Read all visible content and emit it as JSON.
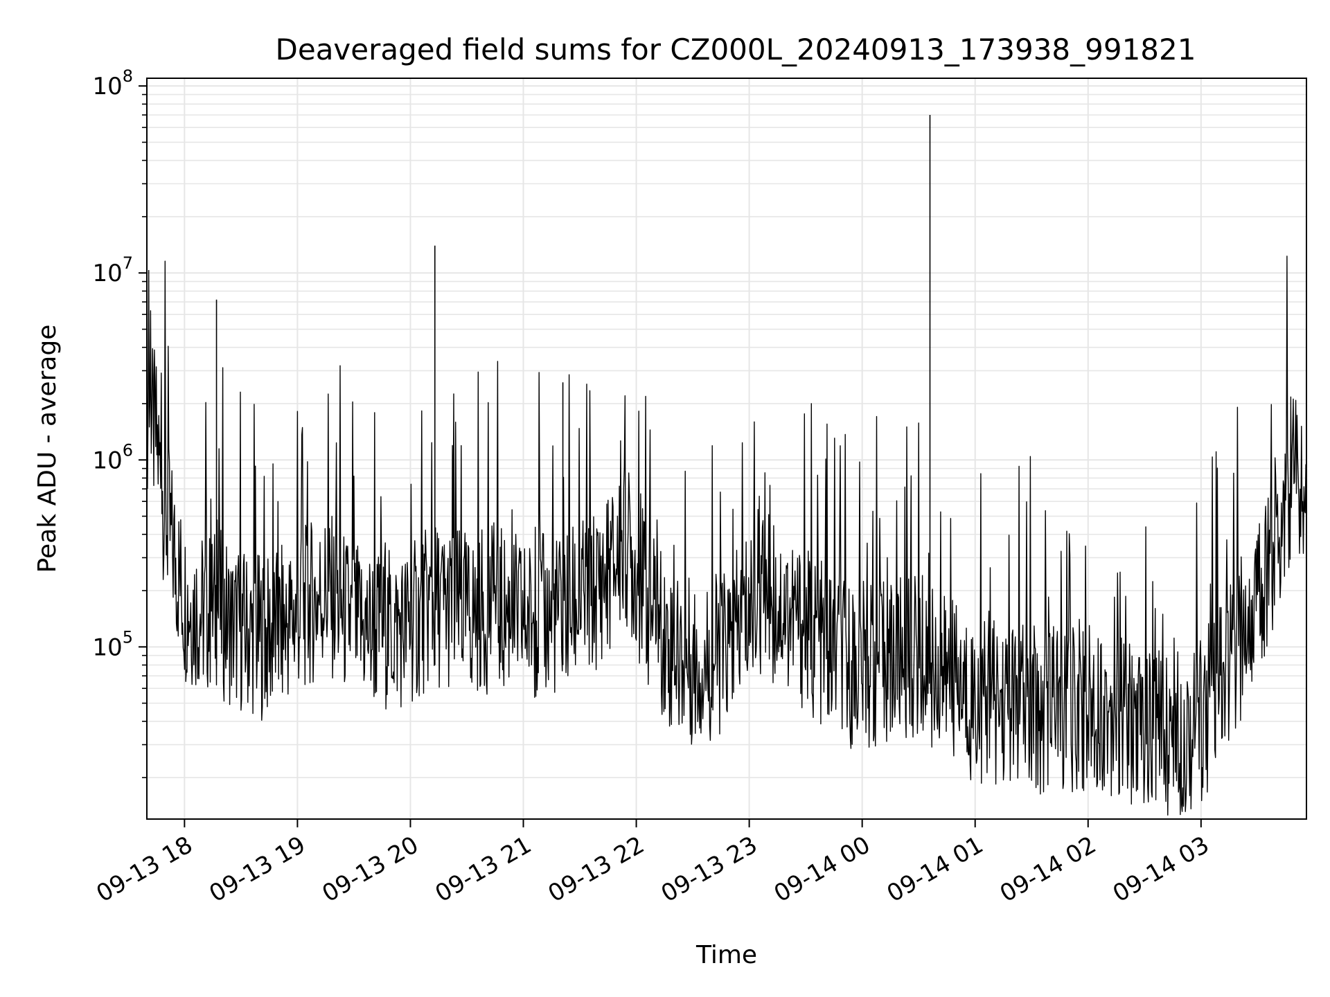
{
  "chart_data": {
    "type": "line",
    "title": "Deaveraged field sums for CZ000L_20240913_173938_991821",
    "xlabel": "Time",
    "ylabel": "Peak ADU - average",
    "yscale": "log",
    "ylim": [
      12000,
      110000000
    ],
    "xlim": [
      "2024-09-13 17:40",
      "2024-09-14 03:56"
    ],
    "x_ticks": [
      {
        "t": "2024-09-13 18:00",
        "label": "09-13 18"
      },
      {
        "t": "2024-09-13 19:00",
        "label": "09-13 19"
      },
      {
        "t": "2024-09-13 20:00",
        "label": "09-13 20"
      },
      {
        "t": "2024-09-13 21:00",
        "label": "09-13 21"
      },
      {
        "t": "2024-09-13 22:00",
        "label": "09-13 22"
      },
      {
        "t": "2024-09-13 23:00",
        "label": "09-13 23"
      },
      {
        "t": "2024-09-14 00:00",
        "label": "09-14 00"
      },
      {
        "t": "2024-09-14 01:00",
        "label": "09-14 01"
      },
      {
        "t": "2024-09-14 02:00",
        "label": "09-14 02"
      },
      {
        "t": "2024-09-14 03:00",
        "label": "09-14 03"
      }
    ],
    "y_ticks": [
      {
        "value": 100000,
        "base": "10",
        "exp": "5"
      },
      {
        "value": 1000000,
        "base": "10",
        "exp": "6"
      },
      {
        "value": 10000000,
        "base": "10",
        "exp": "7"
      },
      {
        "value": 100000000,
        "base": "10",
        "exp": "8"
      }
    ],
    "grid": true,
    "line_color": "#000000",
    "grid_color": "#e6e6e6",
    "series": [
      {
        "x": [
          "2024-09-13 17:40",
          "2024-09-13 17:45",
          "2024-09-13 17:50",
          "2024-09-13 17:55",
          "2024-09-13 18:00",
          "2024-09-13 18:10",
          "2024-09-13 18:17",
          "2024-09-13 18:25",
          "2024-09-13 18:35",
          "2024-09-13 18:45",
          "2024-09-13 19:00",
          "2024-09-13 19:15",
          "2024-09-13 19:30",
          "2024-09-13 19:45",
          "2024-09-13 20:00",
          "2024-09-13 20:13",
          "2024-09-13 20:30",
          "2024-09-13 20:45",
          "2024-09-13 21:00",
          "2024-09-13 21:20",
          "2024-09-13 21:35",
          "2024-09-13 21:45",
          "2024-09-13 21:55",
          "2024-09-13 22:05",
          "2024-09-13 22:20",
          "2024-09-13 22:35",
          "2024-09-13 22:50",
          "2024-09-13 23:05",
          "2024-09-13 23:20",
          "2024-09-13 23:35",
          "2024-09-13 23:50",
          "2024-09-14 00:10",
          "2024-09-14 00:30",
          "2024-09-14 00:36",
          "2024-09-14 00:50",
          "2024-09-14 01:05",
          "2024-09-14 01:20",
          "2024-09-14 01:35",
          "2024-09-14 01:50",
          "2024-09-14 02:05",
          "2024-09-14 02:20",
          "2024-09-14 02:35",
          "2024-09-14 02:50",
          "2024-09-14 03:05",
          "2024-09-14 03:20",
          "2024-09-14 03:30",
          "2024-09-14 03:40",
          "2024-09-14 03:50",
          "2024-09-14 03:56"
        ],
        "y": [
          1800000,
          1300000,
          500000,
          300000,
          180000,
          150000,
          160000,
          130000,
          120000,
          110000,
          150000,
          200000,
          130000,
          120000,
          130000,
          170000,
          150000,
          160000,
          140000,
          150000,
          180000,
          250000,
          350000,
          180000,
          90000,
          80000,
          100000,
          200000,
          160000,
          110000,
          80000,
          80000,
          90000,
          80000,
          60000,
          50000,
          50000,
          45000,
          45000,
          50000,
          40000,
          35000,
          35000,
          45000,
          100000,
          180000,
          400000,
          1000000,
          500000
        ]
      }
    ],
    "spikes": [
      {
        "t": "2024-09-13 18:17",
        "value": 7200000
      },
      {
        "t": "2024-09-13 20:13",
        "value": 14000000
      },
      {
        "t": "2024-09-13 21:21",
        "value": 2600000
      },
      {
        "t": "2024-09-14 00:36",
        "value": 70000000
      }
    ]
  }
}
